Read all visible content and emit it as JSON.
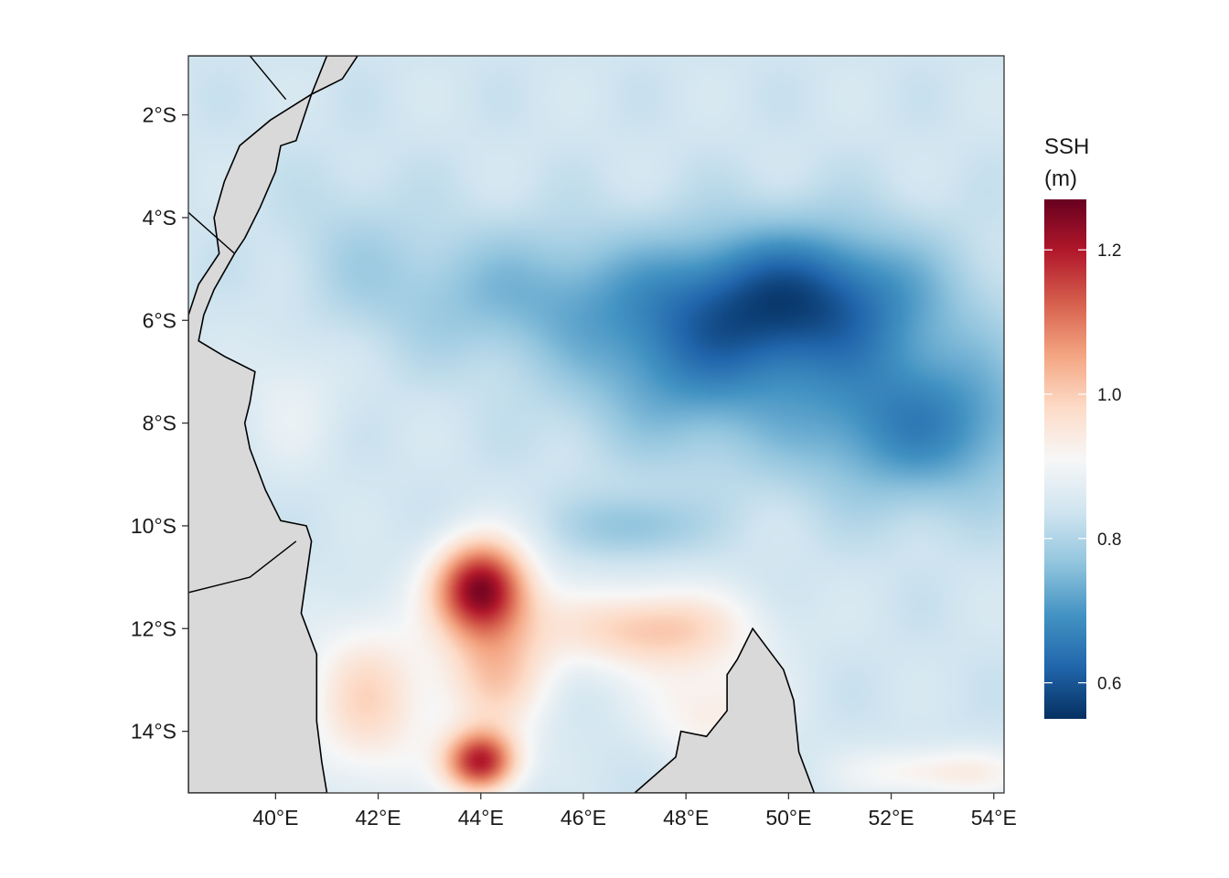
{
  "chart_data": {
    "type": "heatmap",
    "title": "",
    "xlabel": "",
    "ylabel": "",
    "variable": "SSH",
    "xlim": [
      38.3,
      54.2
    ],
    "ylim": [
      -15.2,
      -0.85
    ],
    "x_ticks": [
      {
        "value": 40,
        "label": "40°E"
      },
      {
        "value": 42,
        "label": "42°E"
      },
      {
        "value": 44,
        "label": "44°E"
      },
      {
        "value": 46,
        "label": "46°E"
      },
      {
        "value": 48,
        "label": "48°E"
      },
      {
        "value": 50,
        "label": "50°E"
      },
      {
        "value": 52,
        "label": "52°E"
      },
      {
        "value": 54,
        "label": "54°E"
      }
    ],
    "y_ticks": [
      {
        "value": -2,
        "label": "2°S"
      },
      {
        "value": -4,
        "label": "4°S"
      },
      {
        "value": -6,
        "label": "6°S"
      },
      {
        "value": -8,
        "label": "8°S"
      },
      {
        "value": -10,
        "label": "10°S"
      },
      {
        "value": -12,
        "label": "12°S"
      },
      {
        "value": -14,
        "label": "14°S"
      }
    ],
    "legend": {
      "title_lines": [
        "SSH",
        "(m)"
      ],
      "placement": "right",
      "range": [
        0.55,
        1.27
      ],
      "ticks": [
        {
          "value": 0.6,
          "label": "0.6"
        },
        {
          "value": 0.8,
          "label": "0.8"
        },
        {
          "value": 1.0,
          "label": "1.0"
        },
        {
          "value": 1.2,
          "label": "1.2"
        }
      ],
      "palette": [
        "#053061",
        "#2166ac",
        "#4393c3",
        "#92c5de",
        "#d1e5f0",
        "#f7f7f7",
        "#fddbc7",
        "#f4a582",
        "#d6604d",
        "#b2182b",
        "#67001f"
      ]
    },
    "field": {
      "base": 0.84,
      "features": [
        {
          "lon": 50.2,
          "lat": -5.6,
          "amp": -0.24,
          "rlon": 2.6,
          "rlat": 1.4
        },
        {
          "lon": 52.5,
          "lat": -8.0,
          "amp": -0.17,
          "rlon": 2.4,
          "rlat": 1.5
        },
        {
          "lon": 48.0,
          "lat": -7.0,
          "amp": -0.12,
          "rlon": 2.2,
          "rlat": 1.6
        },
        {
          "lon": 45.0,
          "lat": -5.5,
          "amp": -0.09,
          "rlon": 3.0,
          "rlat": 1.3
        },
        {
          "lon": 47.0,
          "lat": -10.0,
          "amp": -0.08,
          "rlon": 1.2,
          "rlat": 0.6
        },
        {
          "lon": 44.0,
          "lat": -11.2,
          "amp": 0.38,
          "rlon": 0.9,
          "rlat": 0.9
        },
        {
          "lon": 44.0,
          "lat": -14.6,
          "amp": 0.34,
          "rlon": 0.7,
          "rlat": 0.6
        },
        {
          "lon": 44.3,
          "lat": -12.8,
          "amp": 0.16,
          "rlon": 1.1,
          "rlat": 1.3
        },
        {
          "lon": 41.8,
          "lat": -13.4,
          "amp": 0.14,
          "rlon": 1.2,
          "rlat": 1.6
        },
        {
          "lon": 47.3,
          "lat": -12.0,
          "amp": 0.17,
          "rlon": 1.9,
          "rlat": 0.8
        },
        {
          "lon": 48.5,
          "lat": -13.6,
          "amp": 0.1,
          "rlon": 1.3,
          "rlat": 1.0
        },
        {
          "lon": 53.0,
          "lat": -14.8,
          "amp": 0.1,
          "rlon": 1.8,
          "rlat": 0.5
        },
        {
          "lon": 40.3,
          "lat": -7.5,
          "amp": 0.04,
          "rlon": 1.0,
          "rlat": 1.5
        },
        {
          "lon": 41.5,
          "lat": -4.5,
          "amp": -0.03,
          "rlon": 1.3,
          "rlat": 1.5
        }
      ]
    },
    "land": {
      "coast_west": [
        [
          38.3,
          -0.85
        ],
        [
          41.0,
          -0.85
        ],
        [
          40.7,
          -1.6
        ],
        [
          39.9,
          -2.1
        ],
        [
          39.3,
          -2.6
        ],
        [
          39.0,
          -3.3
        ],
        [
          38.8,
          -4.0
        ],
        [
          38.9,
          -4.7
        ],
        [
          38.5,
          -5.3
        ],
        [
          38.3,
          -5.9
        ],
        [
          38.3,
          -15.2
        ],
        [
          41.0,
          -15.2
        ],
        [
          40.9,
          -14.6
        ],
        [
          40.8,
          -13.8
        ],
        [
          40.8,
          -12.5
        ],
        [
          40.5,
          -11.7
        ],
        [
          40.6,
          -11.0
        ],
        [
          40.7,
          -10.3
        ],
        [
          40.6,
          -10.0
        ],
        [
          40.1,
          -9.9
        ],
        [
          39.8,
          -9.3
        ],
        [
          39.5,
          -8.5
        ],
        [
          39.4,
          -8.0
        ],
        [
          39.5,
          -7.6
        ],
        [
          39.6,
          -7.0
        ],
        [
          39.0,
          -6.7
        ],
        [
          38.5,
          -6.4
        ],
        [
          38.6,
          -5.9
        ],
        [
          38.8,
          -5.4
        ],
        [
          39.2,
          -4.7
        ],
        [
          39.4,
          -4.4
        ],
        [
          39.7,
          -3.8
        ],
        [
          40.0,
          -3.1
        ],
        [
          40.1,
          -2.6
        ],
        [
          40.4,
          -2.5
        ],
        [
          40.7,
          -1.6
        ],
        [
          41.3,
          -1.3
        ],
        [
          41.6,
          -0.85
        ]
      ],
      "madagascar": [
        [
          47.0,
          -15.2
        ],
        [
          47.8,
          -14.5
        ],
        [
          47.9,
          -14.0
        ],
        [
          48.4,
          -14.1
        ],
        [
          48.8,
          -13.6
        ],
        [
          48.8,
          -12.9
        ],
        [
          49.0,
          -12.6
        ],
        [
          49.3,
          -12.0
        ],
        [
          49.6,
          -12.4
        ],
        [
          49.9,
          -12.8
        ],
        [
          50.1,
          -13.4
        ],
        [
          50.2,
          -14.4
        ],
        [
          50.5,
          -15.2
        ]
      ],
      "borders": [
        [
          [
            39.5,
            -0.85
          ],
          [
            40.2,
            -1.7
          ]
        ],
        [
          [
            38.3,
            -3.9
          ],
          [
            39.2,
            -4.7
          ]
        ],
        [
          [
            38.3,
            -11.3
          ],
          [
            39.5,
            -11.0
          ],
          [
            40.4,
            -10.3
          ]
        ]
      ]
    }
  }
}
